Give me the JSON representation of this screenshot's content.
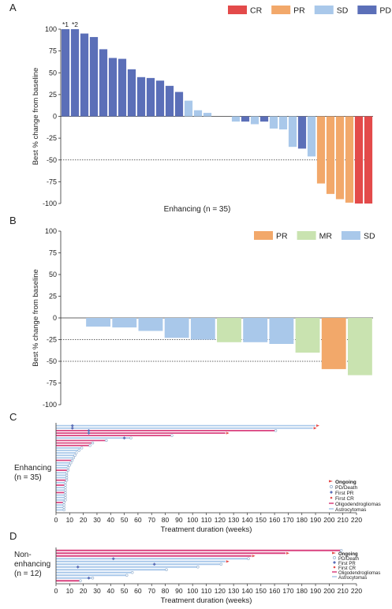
{
  "panel_labels": [
    "A",
    "B",
    "C",
    "D"
  ],
  "chart_data": [
    {
      "type": "bar",
      "panel": "A",
      "ylabel": "Best % change from baseline",
      "xlabel": "Enhancing (n = 35)",
      "ylim": [
        -100,
        100
      ],
      "yticks": [
        100,
        75,
        50,
        25,
        0,
        -25,
        -50,
        -75,
        -100
      ],
      "reference_line": -50,
      "legend": [
        {
          "label": "CR",
          "color": "#e34a4a"
        },
        {
          "label": "PR",
          "color": "#f2a86a"
        },
        {
          "label": "SD",
          "color": "#a9c8ea"
        },
        {
          "label": "PD",
          "color": "#5b6fb8"
        }
      ],
      "annotations": [
        "*1",
        "*2"
      ],
      "values": [
        100,
        100,
        95,
        91,
        77,
        67,
        66,
        54,
        45,
        44,
        41,
        35,
        28,
        18,
        7,
        4,
        0,
        0,
        -6,
        -6,
        -9,
        -6,
        -14,
        -15,
        -35,
        -37,
        -46,
        -77,
        -89,
        -95,
        -99,
        -100,
        -100
      ],
      "response": [
        "PD",
        "PD",
        "PD",
        "PD",
        "PD",
        "PD",
        "PD",
        "PD",
        "PD",
        "PD",
        "PD",
        "PD",
        "PD",
        "SD",
        "SD",
        "SD",
        "SD",
        "SD",
        "SD",
        "PD",
        "SD",
        "PD",
        "SD",
        "SD",
        "SD",
        "PD",
        "SD",
        "PR",
        "PR",
        "PR",
        "PR",
        "CR",
        "CR"
      ]
    },
    {
      "type": "bar",
      "panel": "B",
      "ylabel": "Best % change from baseline",
      "ylim": [
        -100,
        100
      ],
      "yticks": [
        100,
        75,
        50,
        25,
        0,
        -25,
        -50,
        -75,
        -100
      ],
      "reference_lines": [
        -25,
        -50
      ],
      "legend": [
        {
          "label": "PR",
          "color": "#f2a86a"
        },
        {
          "label": "MR",
          "color": "#c9e3b0"
        },
        {
          "label": "SD",
          "color": "#a9c8ea"
        }
      ],
      "values": [
        -10,
        -11,
        -15,
        -23,
        -25,
        -28,
        -28,
        -30,
        -40,
        -59,
        -66
      ],
      "response": [
        "SD",
        "SD",
        "SD",
        "SD",
        "SD",
        "MR",
        "SD",
        "SD",
        "MR",
        "PR",
        "MR"
      ]
    },
    {
      "type": "swimmer",
      "panel": "C",
      "side_label": [
        "Enhancing",
        "(n = 35)"
      ],
      "xlabel": "Treatment duration (weeks)",
      "xlim": [
        0,
        220
      ],
      "xticks": [
        0,
        10,
        20,
        30,
        40,
        50,
        60,
        70,
        80,
        90,
        100,
        110,
        120,
        130,
        140,
        150,
        160,
        170,
        180,
        190,
        200,
        210,
        220
      ],
      "legend": [
        {
          "label": "Ongoing",
          "marker": "arrow",
          "color": "#e34a4a"
        },
        {
          "label": "PD/Death",
          "marker": "circle",
          "color": "#a9c8ea"
        },
        {
          "label": "First PR",
          "marker": "diamond",
          "color": "#5b6fb8"
        },
        {
          "label": "First CR",
          "marker": "dot",
          "color": "#e34a4a"
        },
        {
          "label": "Oligodendrogliomas",
          "marker": "line",
          "color": "#d9417e"
        },
        {
          "label": "Astrocytomas",
          "marker": "line",
          "color": "#a9c8ea"
        }
      ],
      "bars": [
        {
          "weeks": 190,
          "histology": "Astrocytomas",
          "ongoing": true,
          "first_pr": 12
        },
        {
          "weeks": 188,
          "histology": "Astrocytomas",
          "ongoing": true,
          "first_pr": 12
        },
        {
          "weeks": 160,
          "histology": "Oligodendrogliomas",
          "ongoing": false,
          "first_pr": 24
        },
        {
          "weeks": 124,
          "histology": "Oligodendrogliomas",
          "ongoing": true,
          "first_pr": 24
        },
        {
          "weeks": 84,
          "histology": "Oligodendrogliomas",
          "ongoing": false
        },
        {
          "weeks": 54,
          "histology": "Astrocytomas",
          "ongoing": false,
          "first_pr": 50
        },
        {
          "weeks": 36,
          "histology": "Oligodendrogliomas",
          "ongoing": false
        },
        {
          "weeks": 26,
          "histology": "Oligodendrogliomas",
          "ongoing": false
        },
        {
          "weeks": 24,
          "histology": "Oligodendrogliomas",
          "ongoing": false
        },
        {
          "weeks": 18,
          "histology": "Astrocytomas",
          "ongoing": false
        },
        {
          "weeks": 16,
          "histology": "Astrocytomas",
          "ongoing": false
        },
        {
          "weeks": 14,
          "histology": "Astrocytomas",
          "ongoing": false
        },
        {
          "weeks": 13,
          "histology": "Astrocytomas",
          "ongoing": false
        },
        {
          "weeks": 12,
          "histology": "Astrocytomas",
          "ongoing": false
        },
        {
          "weeks": 11,
          "histology": "Oligodendrogliomas",
          "ongoing": false
        },
        {
          "weeks": 10,
          "histology": "Astrocytomas",
          "ongoing": false
        },
        {
          "weeks": 9,
          "histology": "Astrocytomas",
          "ongoing": false
        },
        {
          "weeks": 8,
          "histology": "Astrocytomas",
          "ongoing": false
        },
        {
          "weeks": 8,
          "histology": "Oligodendrogliomas",
          "ongoing": false
        },
        {
          "weeks": 7,
          "histology": "Astrocytomas",
          "ongoing": false
        },
        {
          "weeks": 7,
          "histology": "Astrocytomas",
          "ongoing": false
        },
        {
          "weeks": 7,
          "histology": "Astrocytomas",
          "ongoing": false
        },
        {
          "weeks": 7,
          "histology": "Oligodendrogliomas",
          "ongoing": false
        },
        {
          "weeks": 6,
          "histology": "Astrocytomas",
          "ongoing": false
        },
        {
          "weeks": 6,
          "histology": "Oligodendrogliomas",
          "ongoing": false
        },
        {
          "weeks": 6,
          "histology": "Astrocytomas",
          "ongoing": false
        },
        {
          "weeks": 6,
          "histology": "Astrocytomas",
          "ongoing": false
        },
        {
          "weeks": 6,
          "histology": "Oligodendrogliomas",
          "ongoing": false
        },
        {
          "weeks": 6,
          "histology": "Astrocytomas",
          "ongoing": false
        },
        {
          "weeks": 6,
          "histology": "Astrocytomas",
          "ongoing": false
        },
        {
          "weeks": 6,
          "histology": "Astrocytomas",
          "ongoing": false
        },
        {
          "weeks": 5,
          "histology": "Oligodendrogliomas",
          "ongoing": false
        },
        {
          "weeks": 5,
          "histology": "Astrocytomas",
          "ongoing": false
        },
        {
          "weeks": 5,
          "histology": "Astrocytomas",
          "ongoing": false
        },
        {
          "weeks": 5,
          "histology": "Astrocytomas",
          "ongoing": false
        }
      ]
    },
    {
      "type": "swimmer",
      "panel": "D",
      "side_label": [
        "Non-",
        "enhancing",
        "(n = 12)"
      ],
      "xlabel": "Treatment duration (weeks)",
      "xlim": [
        0,
        220
      ],
      "xticks": [
        0,
        10,
        20,
        30,
        40,
        50,
        60,
        70,
        80,
        90,
        100,
        110,
        120,
        130,
        140,
        150,
        160,
        170,
        180,
        190,
        200,
        210,
        220
      ],
      "legend": [
        {
          "label": "Ongoing",
          "marker": "arrow",
          "color": "#e34a4a"
        },
        {
          "label": "PD/Death",
          "marker": "circle",
          "color": "#a9c8ea"
        },
        {
          "label": "First PR",
          "marker": "diamond",
          "color": "#5b6fb8"
        },
        {
          "label": "First CR",
          "marker": "dot",
          "color": "#e34a4a"
        },
        {
          "label": "Oligodendrogliomas",
          "marker": "line",
          "color": "#d9417e"
        },
        {
          "label": "Astrocytomas",
          "marker": "line",
          "color": "#a9c8ea"
        }
      ],
      "bars": [
        {
          "weeks": 208,
          "histology": "Oligodendrogliomas",
          "ongoing": false
        },
        {
          "weeks": 168,
          "histology": "Oligodendrogliomas",
          "ongoing": true
        },
        {
          "weeks": 143,
          "histology": "Oligodendrogliomas",
          "ongoing": true
        },
        {
          "weeks": 140,
          "histology": "Astrocytomas",
          "ongoing": false,
          "first_pr": 42
        },
        {
          "weeks": 124,
          "histology": "Astrocytomas",
          "ongoing": true
        },
        {
          "weeks": 120,
          "histology": "Astrocytomas",
          "ongoing": false,
          "first_pr": 72
        },
        {
          "weeks": 103,
          "histology": "Astrocytomas",
          "ongoing": false,
          "first_pr": 16
        },
        {
          "weeks": 80,
          "histology": "Astrocytomas",
          "ongoing": false
        },
        {
          "weeks": 55,
          "histology": "Astrocytomas",
          "ongoing": false
        },
        {
          "weeks": 51,
          "histology": "Astrocytomas",
          "ongoing": false
        },
        {
          "weeks": 26,
          "histology": "Astrocytomas",
          "ongoing": false,
          "first_pr": 24
        },
        {
          "weeks": 17,
          "histology": "Oligodendrogliomas",
          "ongoing": false
        }
      ]
    }
  ]
}
